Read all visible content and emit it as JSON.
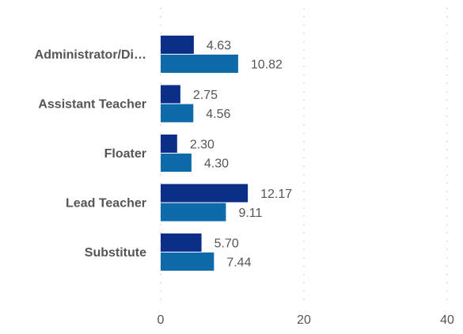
{
  "chart_data": {
    "type": "bar",
    "orientation": "horizontal",
    "categories": [
      "Administrator/Di…",
      "Assistant Teacher",
      "Floater",
      "Lead Teacher",
      "Substitute"
    ],
    "series": [
      {
        "values": [
          4.63,
          2.75,
          2.3,
          12.17,
          5.7
        ],
        "labels": [
          "4.63",
          "2.75",
          "2.30",
          "12.17",
          "5.70"
        ],
        "color": "#0b2f86"
      },
      {
        "values": [
          10.82,
          4.56,
          4.3,
          9.11,
          7.44
        ],
        "labels": [
          "10.82",
          "4.56",
          "4.30",
          "9.11",
          "7.44"
        ],
        "color": "#0e6aa8"
      }
    ],
    "xlim": [
      0,
      40
    ],
    "xticks": [
      "0",
      "20",
      "40"
    ],
    "grid": true,
    "title": "",
    "xlabel": "",
    "ylabel": "",
    "legend": "none"
  }
}
